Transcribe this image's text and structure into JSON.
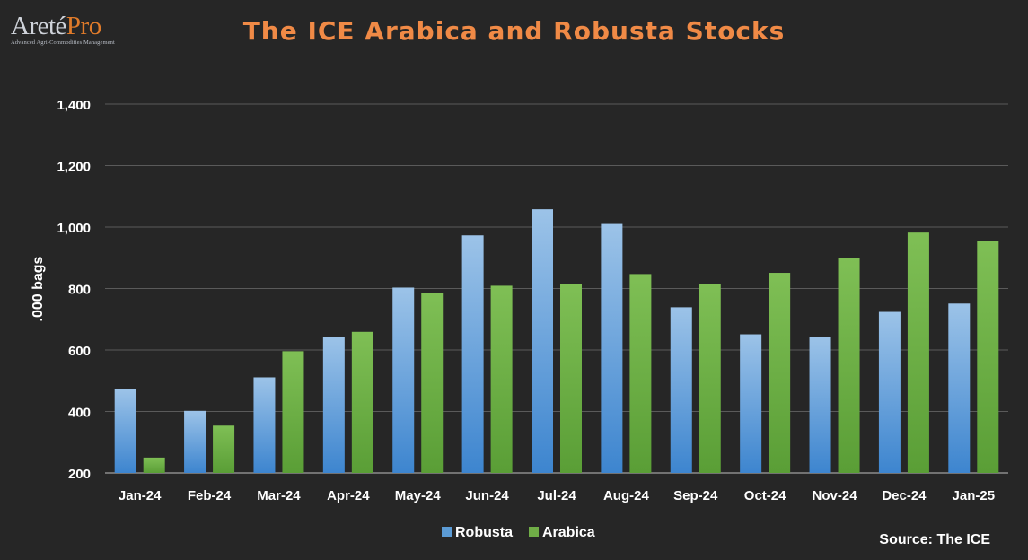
{
  "logo": {
    "name_a": "Areté",
    "name_b": "Pro",
    "tagline": "Advanced Agri-Commodities Management"
  },
  "colors": {
    "background": "#262626",
    "title": "#f08a46",
    "robusta": "#5b9bd5",
    "arabica": "#70ad47",
    "grid": "#595959"
  },
  "chart_data": {
    "type": "bar",
    "title": "The ICE Arabica and Robusta Stocks",
    "ylabel": ".000 bags",
    "xlabel": "",
    "ylim": [
      200,
      1400
    ],
    "yticks": [
      200,
      400,
      600,
      800,
      1000,
      1200,
      1400
    ],
    "ytick_labels": [
      "200",
      "400",
      "600",
      "800",
      "1,000",
      "1,200",
      "1,400"
    ],
    "grid": true,
    "legend_position": "bottom",
    "categories": [
      "Jan-24",
      "Feb-24",
      "Mar-24",
      "Apr-24",
      "May-24",
      "Jun-24",
      "Jul-24",
      "Aug-24",
      "Sep-24",
      "Oct-24",
      "Nov-24",
      "Dec-24",
      "Jan-25"
    ],
    "series": [
      {
        "name": "Robusta",
        "color": "#5b9bd5",
        "values": [
          473,
          402,
          511,
          643,
          803,
          973,
          1058,
          1010,
          739,
          651,
          643,
          724,
          751
        ]
      },
      {
        "name": "Arabica",
        "color": "#70ad47",
        "values": [
          250,
          354,
          596,
          659,
          785,
          809,
          815,
          847,
          815,
          851,
          899,
          982,
          956
        ]
      }
    ],
    "source": "Source: The ICE"
  }
}
